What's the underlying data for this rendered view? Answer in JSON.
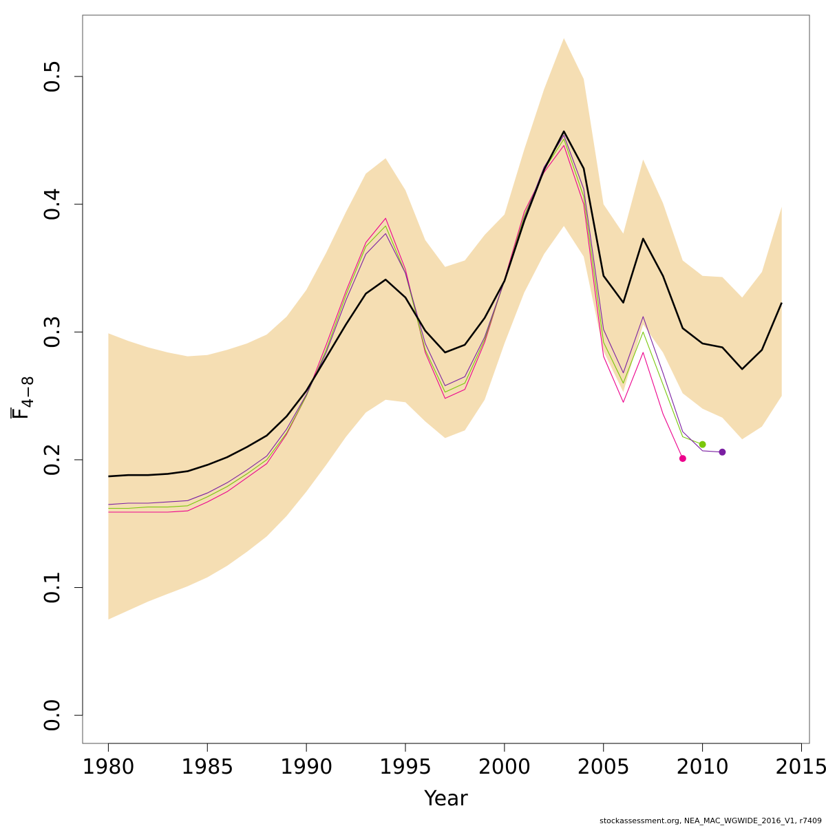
{
  "chart_data": {
    "type": "line",
    "xlabel": "Year",
    "ylabel_main": "F",
    "ylabel_sub": "4−8",
    "xlim": [
      1978.7,
      2015.4
    ],
    "ylim": [
      -0.022,
      0.548
    ],
    "xticks": [
      1980,
      1985,
      1990,
      1995,
      2000,
      2005,
      2010,
      2015
    ],
    "yticks": [
      0.0,
      0.1,
      0.2,
      0.3,
      0.4,
      0.5
    ],
    "ytick_labels": [
      "0.0",
      "0.1",
      "0.2",
      "0.3",
      "0.4",
      "0.5"
    ],
    "band_color": "#f5deb3",
    "band": {
      "x": [
        1980,
        1981,
        1982,
        1983,
        1984,
        1985,
        1986,
        1987,
        1988,
        1989,
        1990,
        1991,
        1992,
        1993,
        1994,
        1995,
        1996,
        1997,
        1998,
        1999,
        2000,
        2001,
        2002,
        2003,
        2004,
        2005,
        2006,
        2007,
        2008,
        2009,
        2010,
        2011,
        2012,
        2013,
        2014
      ],
      "lower": [
        0.075,
        0.082,
        0.089,
        0.095,
        0.101,
        0.108,
        0.117,
        0.128,
        0.14,
        0.156,
        0.175,
        0.196,
        0.218,
        0.237,
        0.247,
        0.245,
        0.23,
        0.217,
        0.223,
        0.247,
        0.291,
        0.331,
        0.361,
        0.383,
        0.359,
        0.285,
        0.253,
        0.306,
        0.284,
        0.252,
        0.24,
        0.233,
        0.216,
        0.226,
        0.25
      ],
      "upper": [
        0.299,
        0.293,
        0.288,
        0.284,
        0.281,
        0.282,
        0.286,
        0.291,
        0.298,
        0.312,
        0.333,
        0.362,
        0.394,
        0.424,
        0.436,
        0.411,
        0.372,
        0.351,
        0.356,
        0.376,
        0.392,
        0.443,
        0.49,
        0.53,
        0.498,
        0.4,
        0.377,
        0.435,
        0.401,
        0.356,
        0.344,
        0.343,
        0.327,
        0.347,
        0.398
      ]
    },
    "series": [
      {
        "color": "#000000",
        "width": 2.6,
        "x": [
          1980,
          1981,
          1982,
          1983,
          1984,
          1985,
          1986,
          1987,
          1988,
          1989,
          1990,
          1991,
          1992,
          1993,
          1994,
          1995,
          1996,
          1997,
          1998,
          1999,
          2000,
          2001,
          2002,
          2003,
          2004,
          2005,
          2006,
          2007,
          2008,
          2009,
          2010,
          2011,
          2012,
          2013,
          2014
        ],
        "y": [
          0.187,
          0.188,
          0.188,
          0.189,
          0.191,
          0.196,
          0.202,
          0.21,
          0.219,
          0.234,
          0.254,
          0.28,
          0.306,
          0.33,
          0.341,
          0.327,
          0.301,
          0.284,
          0.29,
          0.311,
          0.34,
          0.387,
          0.427,
          0.457,
          0.428,
          0.344,
          0.323,
          0.373,
          0.344,
          0.303,
          0.291,
          0.288,
          0.271,
          0.286,
          0.323
        ]
      },
      {
        "color": "#7a1fa2",
        "width": 1.1,
        "x": [
          1980,
          1981,
          1982,
          1983,
          1984,
          1985,
          1986,
          1987,
          1988,
          1989,
          1990,
          1991,
          1992,
          1993,
          1994,
          1995,
          1996,
          1997,
          1998,
          1999,
          2000,
          2001,
          2002,
          2003,
          2004,
          2005,
          2006,
          2007,
          2008,
          2009,
          2010,
          2011
        ],
        "y": [
          0.165,
          0.166,
          0.166,
          0.167,
          0.168,
          0.174,
          0.182,
          0.192,
          0.203,
          0.224,
          0.251,
          0.284,
          0.325,
          0.361,
          0.377,
          0.346,
          0.291,
          0.258,
          0.265,
          0.296,
          0.34,
          0.389,
          0.429,
          0.454,
          0.412,
          0.302,
          0.268,
          0.312,
          0.268,
          0.222,
          0.207,
          0.206
        ],
        "endpoint": true
      },
      {
        "color": "#7ac70c",
        "width": 1.1,
        "x": [
          1980,
          1981,
          1982,
          1983,
          1984,
          1985,
          1986,
          1987,
          1988,
          1989,
          1990,
          1991,
          1992,
          1993,
          1994,
          1995,
          1996,
          1997,
          1998,
          1999,
          2000,
          2001,
          2002,
          2003,
          2004,
          2005,
          2006,
          2007,
          2008,
          2009,
          2010
        ],
        "y": [
          0.162,
          0.162,
          0.163,
          0.163,
          0.164,
          0.171,
          0.179,
          0.189,
          0.2,
          0.221,
          0.25,
          0.286,
          0.329,
          0.367,
          0.383,
          0.346,
          0.286,
          0.253,
          0.26,
          0.294,
          0.34,
          0.391,
          0.427,
          0.451,
          0.406,
          0.292,
          0.26,
          0.3,
          0.259,
          0.218,
          0.212
        ],
        "endpoint": true
      },
      {
        "color": "#ec008c",
        "width": 1.1,
        "x": [
          1980,
          1981,
          1982,
          1983,
          1984,
          1985,
          1986,
          1987,
          1988,
          1989,
          1990,
          1991,
          1992,
          1993,
          1994,
          1995,
          1996,
          1997,
          1998,
          1999,
          2000,
          2001,
          2002,
          2003,
          2004,
          2005,
          2006,
          2007,
          2008,
          2009
        ],
        "y": [
          0.159,
          0.159,
          0.159,
          0.159,
          0.16,
          0.167,
          0.175,
          0.186,
          0.197,
          0.22,
          0.25,
          0.29,
          0.332,
          0.37,
          0.389,
          0.349,
          0.284,
          0.248,
          0.255,
          0.292,
          0.341,
          0.394,
          0.425,
          0.446,
          0.4,
          0.281,
          0.245,
          0.284,
          0.236,
          0.201
        ],
        "endpoint": true
      }
    ],
    "grid": false,
    "legend": "none"
  },
  "credit": "stockassessment.org, NEA_MAC_WGWIDE_2016_V1, r7409"
}
